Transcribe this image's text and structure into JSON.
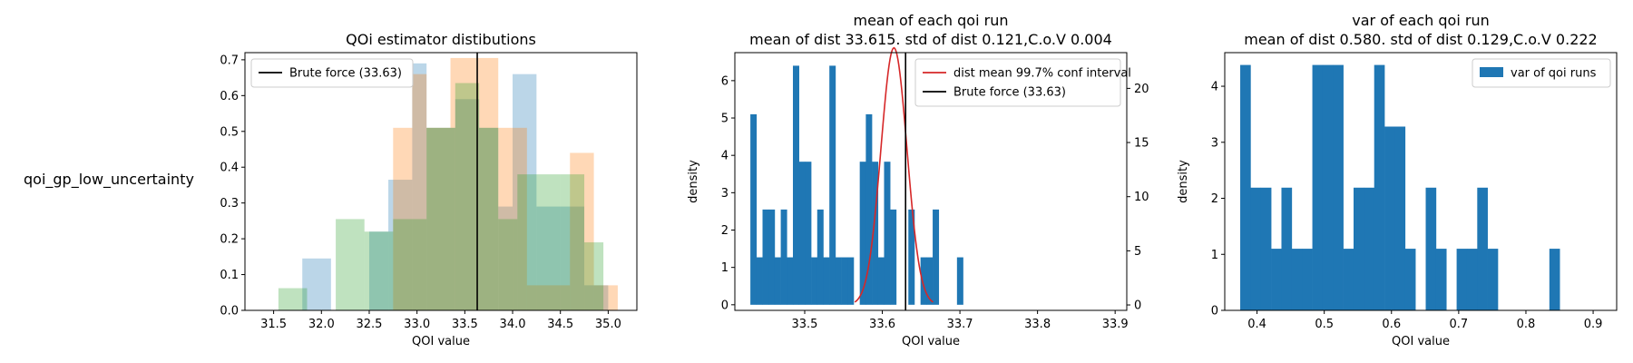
{
  "row_label": "qoi_gp_low_uncertainty",
  "chart_data": [
    {
      "type": "bar",
      "title": "QOi estimator distibutions",
      "xlabel": "QOI value",
      "ylabel": "",
      "xlim": [
        31.2,
        35.3
      ],
      "ylim": [
        0,
        0.72
      ],
      "xticks": [
        31.5,
        32.0,
        32.5,
        33.0,
        33.5,
        34.0,
        34.5,
        35.0
      ],
      "xtick_labels": [
        "31.5",
        "32.0",
        "32.5",
        "33.0",
        "33.5",
        "34.0",
        "34.5",
        "35.0"
      ],
      "yticks": [
        0.0,
        0.1,
        0.2,
        0.3,
        0.4,
        0.5,
        0.6,
        0.7
      ],
      "ytick_labels": [
        "0.0",
        "0.1",
        "0.2",
        "0.3",
        "0.4",
        "0.5",
        "0.6",
        "0.7"
      ],
      "series": [
        {
          "color": "#1f77b4",
          "opacity": 0.3,
          "bins": [
            [
              31.8,
              32.1,
              0.145
            ],
            [
              32.5,
              32.7,
              0.22
            ],
            [
              32.7,
              32.95,
              0.365
            ],
            [
              32.95,
              33.1,
              0.69
            ],
            [
              33.1,
              33.4,
              0.51
            ],
            [
              33.4,
              33.65,
              0.59
            ],
            [
              33.65,
              33.85,
              0.51
            ],
            [
              33.85,
              34.0,
              0.29
            ],
            [
              34.0,
              34.25,
              0.66
            ],
            [
              34.25,
              34.55,
              0.29
            ],
            [
              34.55,
              34.75,
              0.29
            ],
            [
              34.75,
              35.0,
              0.07
            ]
          ]
        },
        {
          "color": "#ff7f0e",
          "opacity": 0.3,
          "bins": [
            [
              32.75,
              32.95,
              0.51
            ],
            [
              32.95,
              33.1,
              0.66
            ],
            [
              33.1,
              33.35,
              0.51
            ],
            [
              33.35,
              33.65,
              0.705
            ],
            [
              33.65,
              33.85,
              0.705
            ],
            [
              33.85,
              34.15,
              0.51
            ],
            [
              34.15,
              34.35,
              0.07
            ],
            [
              34.35,
              34.6,
              0.07
            ],
            [
              34.6,
              34.85,
              0.44
            ],
            [
              34.85,
              35.1,
              0.07
            ]
          ]
        },
        {
          "color": "#2ca02c",
          "opacity": 0.3,
          "bins": [
            [
              31.55,
              31.85,
              0.062
            ],
            [
              32.15,
              32.45,
              0.255
            ],
            [
              32.45,
              32.75,
              0.22
            ],
            [
              32.75,
              33.1,
              0.255
            ],
            [
              33.1,
              33.4,
              0.51
            ],
            [
              33.4,
              33.65,
              0.635
            ],
            [
              33.65,
              33.85,
              0.51
            ],
            [
              33.85,
              34.05,
              0.255
            ],
            [
              34.05,
              34.25,
              0.38
            ],
            [
              34.25,
              34.5,
              0.38
            ],
            [
              34.5,
              34.75,
              0.38
            ],
            [
              34.75,
              34.95,
              0.19
            ]
          ]
        }
      ],
      "vlines": [
        {
          "x": 33.63,
          "color": "#000000"
        }
      ],
      "legend": {
        "position": "upper-left",
        "entries": [
          {
            "label": "Brute force (33.63)",
            "color": "#000000",
            "kind": "line"
          }
        ]
      }
    },
    {
      "type": "bar",
      "title": "mean of each qoi run",
      "subtitle": "mean of dist 33.615. std of dist 0.121,C.o.V 0.004",
      "xlabel": "QOI value",
      "ylabel": "density",
      "xlim": [
        33.41,
        33.915
      ],
      "ylim": [
        -0.15,
        6.75
      ],
      "xticks": [
        33.5,
        33.6,
        33.7,
        33.8,
        33.9
      ],
      "xtick_labels": [
        "33.5",
        "33.6",
        "33.7",
        "33.8",
        "33.9"
      ],
      "yticks": [
        0,
        1,
        2,
        3,
        4,
        5,
        6
      ],
      "ytick_labels": [
        "0",
        "1",
        "2",
        "3",
        "4",
        "5",
        "6"
      ],
      "y2lim": [
        -0.5,
        23.3
      ],
      "y2ticks": [
        0,
        5,
        10,
        15,
        20
      ],
      "y2tick_labels": [
        "0",
        "5",
        "10",
        "15",
        "20"
      ],
      "bar_color": "#1f77b4",
      "bin_start": 33.43,
      "bin_width": 0.00783,
      "values": [
        5.1,
        1.27,
        2.55,
        2.55,
        1.27,
        2.55,
        1.27,
        6.4,
        3.83,
        3.83,
        1.27,
        2.55,
        1.27,
        6.4,
        1.27,
        1.27,
        1.27,
        0,
        3.83,
        5.1,
        3.83,
        1.27,
        3.83,
        2.55,
        0,
        0,
        2.55,
        0,
        1.27,
        1.27,
        2.55,
        0,
        0,
        0,
        1.27
      ],
      "curve": {
        "mean": 33.615,
        "std": 0.0168,
        "color": "#d62728",
        "label": "dist mean 99.7% conf interval",
        "axis": "right"
      },
      "vlines": [
        {
          "x": 33.63,
          "color": "#000000"
        }
      ],
      "legend": {
        "position": "upper-right",
        "entries": [
          {
            "label": "dist mean 99.7% conf interval",
            "color": "#d62728",
            "kind": "line"
          },
          {
            "label": "Brute force (33.63)",
            "color": "#000000",
            "kind": "line"
          }
        ]
      }
    },
    {
      "type": "bar",
      "title": "var of each qoi run",
      "subtitle": "mean of dist 0.580. std of dist 0.129,C.o.V 0.222",
      "xlabel": "QOI value",
      "ylabel": "density",
      "xlim": [
        0.352,
        0.935
      ],
      "ylim": [
        0,
        4.6
      ],
      "xticks": [
        0.4,
        0.5,
        0.6,
        0.7,
        0.8,
        0.9
      ],
      "xtick_labels": [
        "0.4",
        "0.5",
        "0.6",
        "0.7",
        "0.8",
        "0.9"
      ],
      "yticks": [
        0,
        1,
        2,
        3,
        4
      ],
      "ytick_labels": [
        "0",
        "1",
        "2",
        "3",
        "4"
      ],
      "bar_color": "#1f77b4",
      "bin_start": 0.375,
      "bin_width": 0.01533,
      "values": [
        4.38,
        2.19,
        2.19,
        1.1,
        2.19,
        1.1,
        1.1,
        4.38,
        4.38,
        4.38,
        1.1,
        2.19,
        2.19,
        4.38,
        3.28,
        3.28,
        1.1,
        0,
        2.19,
        1.1,
        0,
        1.1,
        1.1,
        2.19,
        1.1,
        0,
        0,
        0,
        0,
        0,
        1.1
      ],
      "legend": {
        "position": "upper-right",
        "entries": [
          {
            "label": "var of qoi runs",
            "color": "#1f77b4",
            "kind": "patch"
          }
        ]
      }
    }
  ]
}
